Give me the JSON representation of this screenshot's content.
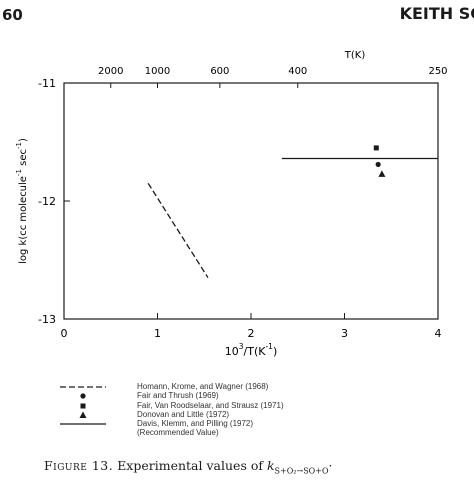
{
  "page": {
    "number": "60",
    "running_head": "KEITH SC"
  },
  "chart_data": {
    "type": "line",
    "xlabel": "10^3/T(K^-1)",
    "ylabel": "log k(cc molecule^-1 sec^-1)",
    "top_axis_label": "T(K)",
    "xlim": [
      0,
      4
    ],
    "ylim": [
      -13,
      -11
    ],
    "x_ticks": [
      0,
      1,
      2,
      3,
      4
    ],
    "y_ticks": [
      -13,
      -12,
      -11
    ],
    "top_ticks": [
      {
        "label": "2000",
        "x": 0.5
      },
      {
        "label": "1000",
        "x": 1.0
      },
      {
        "label": "600",
        "x": 1.667
      },
      {
        "label": "400",
        "x": 2.5
      },
      {
        "label": "250",
        "x": 4.0
      }
    ],
    "series": [
      {
        "name": "Homann, Krome, and Wagner (1968)",
        "style": "dashed",
        "marker": "none",
        "x": [
          0.9,
          1.54
        ],
        "y": [
          -11.85,
          -12.65
        ]
      },
      {
        "name": "Fair and Thrush (1969)",
        "style": "none",
        "marker": "circle",
        "x": [
          3.36
        ],
        "y": [
          -11.69
        ]
      },
      {
        "name": "Fair, Van Roodselaar, and Strausz (1971)",
        "style": "none",
        "marker": "square",
        "x": [
          3.34
        ],
        "y": [
          -11.55
        ]
      },
      {
        "name": "Donovan and Little (1972)",
        "style": "none",
        "marker": "triangle",
        "x": [
          3.4
        ],
        "y": [
          -11.77
        ]
      },
      {
        "name": "Davis, Klemm, and Pilling (1972) (Recommended Value)",
        "style": "solid",
        "marker": "none",
        "x": [
          2.33,
          4.0
        ],
        "y": [
          -11.64,
          -11.64
        ]
      }
    ]
  },
  "legend": [
    {
      "symbol": "dashed",
      "text": "Homann, Krome, and Wagner (1968)"
    },
    {
      "symbol": "circle",
      "text": "Fair and Thrush (1969)"
    },
    {
      "symbol": "square",
      "text": "Fair, Van Roodselaar, and Strausz (1971)"
    },
    {
      "symbol": "triangle",
      "text": "Donovan and Little (1972)"
    },
    {
      "symbol": "solid",
      "text": "Davis, Klemm, and Pilling (1972)"
    },
    {
      "symbol": "none",
      "text": "(Recommended Value)"
    }
  ],
  "caption": {
    "label": "Figure 13.",
    "text": "Experimental values of",
    "k": "k",
    "subscript": "S+O₂→SO+O",
    "end": "·"
  },
  "colors": {
    "ink": "#1a1a1a",
    "paper": "#ffffff"
  }
}
